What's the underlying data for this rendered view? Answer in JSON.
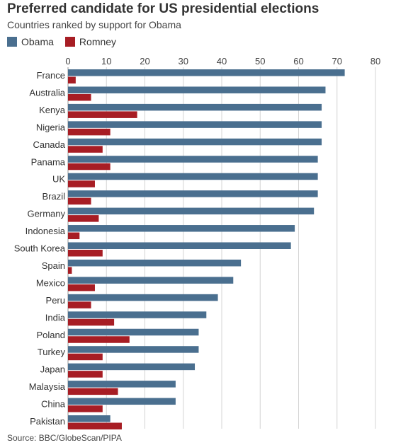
{
  "chart_data": {
    "type": "bar",
    "title": "Preferred candidate for US presidential elections",
    "subtitle": "Countries ranked by support for Obama",
    "source": "Source: BBC/GlobeScan/PIPA",
    "categories": [
      "France",
      "Australia",
      "Kenya",
      "Nigeria",
      "Canada",
      "Panama",
      "UK",
      "Brazil",
      "Germany",
      "Indonesia",
      "South Korea",
      "Spain",
      "Mexico",
      "Peru",
      "India",
      "Poland",
      "Turkey",
      "Japan",
      "Malaysia",
      "China",
      "Pakistan"
    ],
    "series": [
      {
        "name": "Obama",
        "color": "#4a6f8f",
        "values": [
          72,
          67,
          66,
          66,
          66,
          65,
          65,
          65,
          64,
          59,
          58,
          45,
          43,
          39,
          36,
          34,
          34,
          33,
          28,
          28,
          11
        ]
      },
      {
        "name": "Romney",
        "color": "#a71d24",
        "values": [
          2,
          6,
          18,
          11,
          9,
          11,
          7,
          6,
          8,
          3,
          9,
          1,
          7,
          6,
          12,
          16,
          9,
          9,
          13,
          9,
          14
        ]
      }
    ],
    "xticks": [
      0,
      10,
      20,
      30,
      40,
      50,
      60,
      70,
      80
    ],
    "xlim": [
      0,
      80
    ],
    "orientation": "horizontal",
    "grid": true,
    "legend_position": "top-left"
  }
}
